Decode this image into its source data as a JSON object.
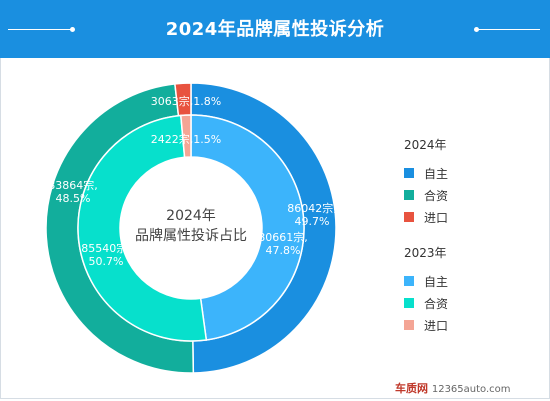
{
  "header": {
    "title": "2024年品牌属性投诉分析"
  },
  "chart_data": {
    "type": "pie",
    "center_label": [
      "2024年",
      "品牌属性投诉占比"
    ],
    "series": [
      {
        "name": "2024年",
        "ring": "outer",
        "items": [
          {
            "name": "自主",
            "value": 86042,
            "label": "86042宗,\n49.7%",
            "color": "#1a8fe0"
          },
          {
            "name": "合资",
            "value": 83864,
            "label": "83864宗,\n48.5%",
            "color": "#12ae9c"
          },
          {
            "name": "进口",
            "value": 3063,
            "label": "3063宗,1.8%",
            "color": "#e8533f"
          }
        ]
      },
      {
        "name": "2023年",
        "ring": "inner",
        "items": [
          {
            "name": "自主",
            "value": 80661,
            "label": "80661宗,\n47.8%",
            "color": "#3cb4fb"
          },
          {
            "name": "合资",
            "value": 85540,
            "label": "85540宗,\n50.7%",
            "color": "#07e0cc"
          },
          {
            "name": "进口",
            "value": 2422,
            "label": "2422宗,1.5%",
            "color": "#f4a595"
          }
        ]
      }
    ]
  },
  "watermark": {
    "brand": "车质网",
    "site": "12365auto.com"
  }
}
